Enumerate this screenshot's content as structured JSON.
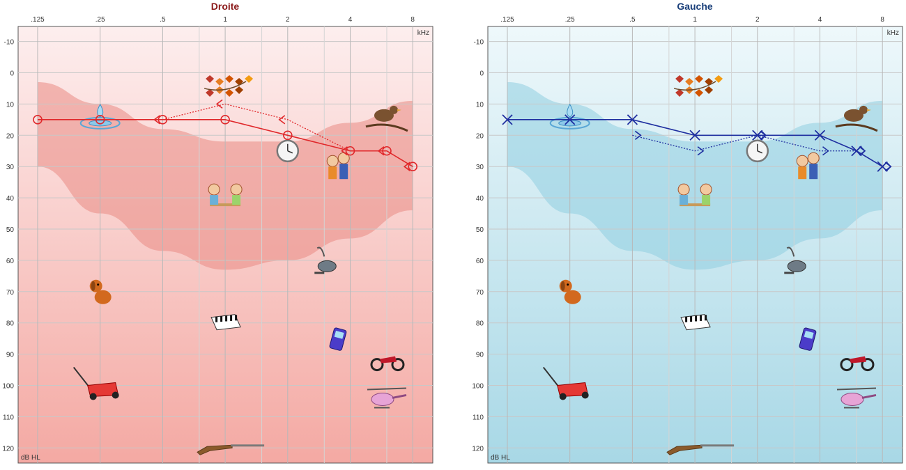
{
  "chart_data": [
    {
      "type": "line",
      "title": "Droite",
      "unit_x": "kHz",
      "unit_y": "dB HL",
      "x_ticks": [
        ".125",
        ".25",
        ".5",
        "1",
        "2",
        "4",
        "8"
      ],
      "y_ticks": [
        "-10",
        "0",
        "10",
        "20",
        "30",
        "40",
        "50",
        "60",
        "70",
        "80",
        "90",
        "100",
        "110",
        "120"
      ],
      "ylim": [
        -15,
        123
      ],
      "y_inverted": true,
      "x_scale": "log2",
      "grid": true,
      "title_color": "#8b1a1a",
      "bg_top": "#fdeeee",
      "bg_bottom": "#f4a9a3",
      "band_color": "#e98a84",
      "series": [
        {
          "marker": "circle",
          "style": "solid",
          "color": "#e0282b",
          "points": [
            [
              0.125,
              15
            ],
            [
              0.25,
              15
            ],
            [
              0.5,
              15
            ],
            [
              1,
              15
            ],
            [
              2,
              20
            ],
            [
              4,
              25
            ],
            [
              6,
              25
            ],
            [
              8,
              30
            ]
          ]
        },
        {
          "marker": "bracket-left",
          "style": "dotted",
          "color": "#e0282b",
          "points": [
            [
              0.5,
              15
            ],
            [
              1,
              10
            ],
            [
              2,
              15
            ],
            [
              4,
              25
            ],
            [
              6,
              25
            ],
            [
              8,
              30
            ]
          ]
        }
      ],
      "sound_icons": [
        {
          "name": "dripping-water-icon",
          "f": 0.25,
          "db": 15
        },
        {
          "name": "leaves-rustling-icon",
          "f": 1,
          "db": 5
        },
        {
          "name": "bird-icon",
          "f": 6,
          "db": 15
        },
        {
          "name": "clock-ticking-icon",
          "f": 2,
          "db": 25
        },
        {
          "name": "whispering-kids-icon",
          "f": 3.5,
          "db": 30
        },
        {
          "name": "conversation-icon",
          "f": 1,
          "db": 40
        },
        {
          "name": "vacuum-cleaner-icon",
          "f": 3,
          "db": 61
        },
        {
          "name": "dog-barking-icon",
          "f": 0.25,
          "db": 70
        },
        {
          "name": "piano-icon",
          "f": 1,
          "db": 80
        },
        {
          "name": "phone-ringing-icon",
          "f": 3.5,
          "db": 85
        },
        {
          "name": "motorcycle-icon",
          "f": 6,
          "db": 92
        },
        {
          "name": "lawn-mower-icon",
          "f": 0.25,
          "db": 100
        },
        {
          "name": "helicopter-icon",
          "f": 6,
          "db": 104
        },
        {
          "name": "gunshot-icon",
          "f": 1,
          "db": 120
        }
      ]
    },
    {
      "type": "line",
      "title": "Gauche",
      "unit_x": "kHz",
      "unit_y": "dB HL",
      "x_ticks": [
        ".125",
        ".25",
        ".5",
        "1",
        "2",
        "4",
        "8"
      ],
      "y_ticks": [
        "-10",
        "0",
        "10",
        "20",
        "30",
        "40",
        "50",
        "60",
        "70",
        "80",
        "90",
        "100",
        "110",
        "120"
      ],
      "ylim": [
        -15,
        123
      ],
      "y_inverted": true,
      "x_scale": "log2",
      "grid": true,
      "title_color": "#1a3f7a",
      "bg_top": "#eef8fb",
      "bg_bottom": "#a8d8e6",
      "band_color": "#8fcde0",
      "series": [
        {
          "marker": "cross",
          "style": "solid",
          "color": "#1f2fa0",
          "points": [
            [
              0.125,
              15
            ],
            [
              0.25,
              15
            ],
            [
              0.5,
              15
            ],
            [
              1,
              20
            ],
            [
              2,
              20
            ],
            [
              4,
              20
            ],
            [
              6,
              25
            ],
            [
              8,
              30
            ]
          ]
        },
        {
          "marker": "bracket-right",
          "style": "dotted",
          "color": "#1f2fa0",
          "points": [
            [
              0.5,
              20
            ],
            [
              1,
              25
            ],
            [
              2,
              20
            ],
            [
              4,
              25
            ],
            [
              6,
              25
            ],
            [
              8,
              30
            ]
          ]
        },
        {
          "marker": "diamond",
          "style": "none",
          "color": "#1f2fa0",
          "points": [
            [
              2,
              20
            ],
            [
              6,
              25
            ],
            [
              8,
              30
            ]
          ]
        }
      ],
      "sound_icons": [
        {
          "name": "dripping-water-icon",
          "f": 0.25,
          "db": 15
        },
        {
          "name": "leaves-rustling-icon",
          "f": 1,
          "db": 5
        },
        {
          "name": "bird-icon",
          "f": 6,
          "db": 15
        },
        {
          "name": "clock-ticking-icon",
          "f": 2,
          "db": 25
        },
        {
          "name": "whispering-kids-icon",
          "f": 3.5,
          "db": 30
        },
        {
          "name": "conversation-icon",
          "f": 1,
          "db": 40
        },
        {
          "name": "vacuum-cleaner-icon",
          "f": 3,
          "db": 61
        },
        {
          "name": "dog-barking-icon",
          "f": 0.25,
          "db": 70
        },
        {
          "name": "piano-icon",
          "f": 1,
          "db": 80
        },
        {
          "name": "phone-ringing-icon",
          "f": 3.5,
          "db": 85
        },
        {
          "name": "motorcycle-icon",
          "f": 6,
          "db": 92
        },
        {
          "name": "lawn-mower-icon",
          "f": 0.25,
          "db": 100
        },
        {
          "name": "helicopter-icon",
          "f": 6,
          "db": 104
        },
        {
          "name": "gunshot-icon",
          "f": 1,
          "db": 120
        }
      ]
    }
  ]
}
